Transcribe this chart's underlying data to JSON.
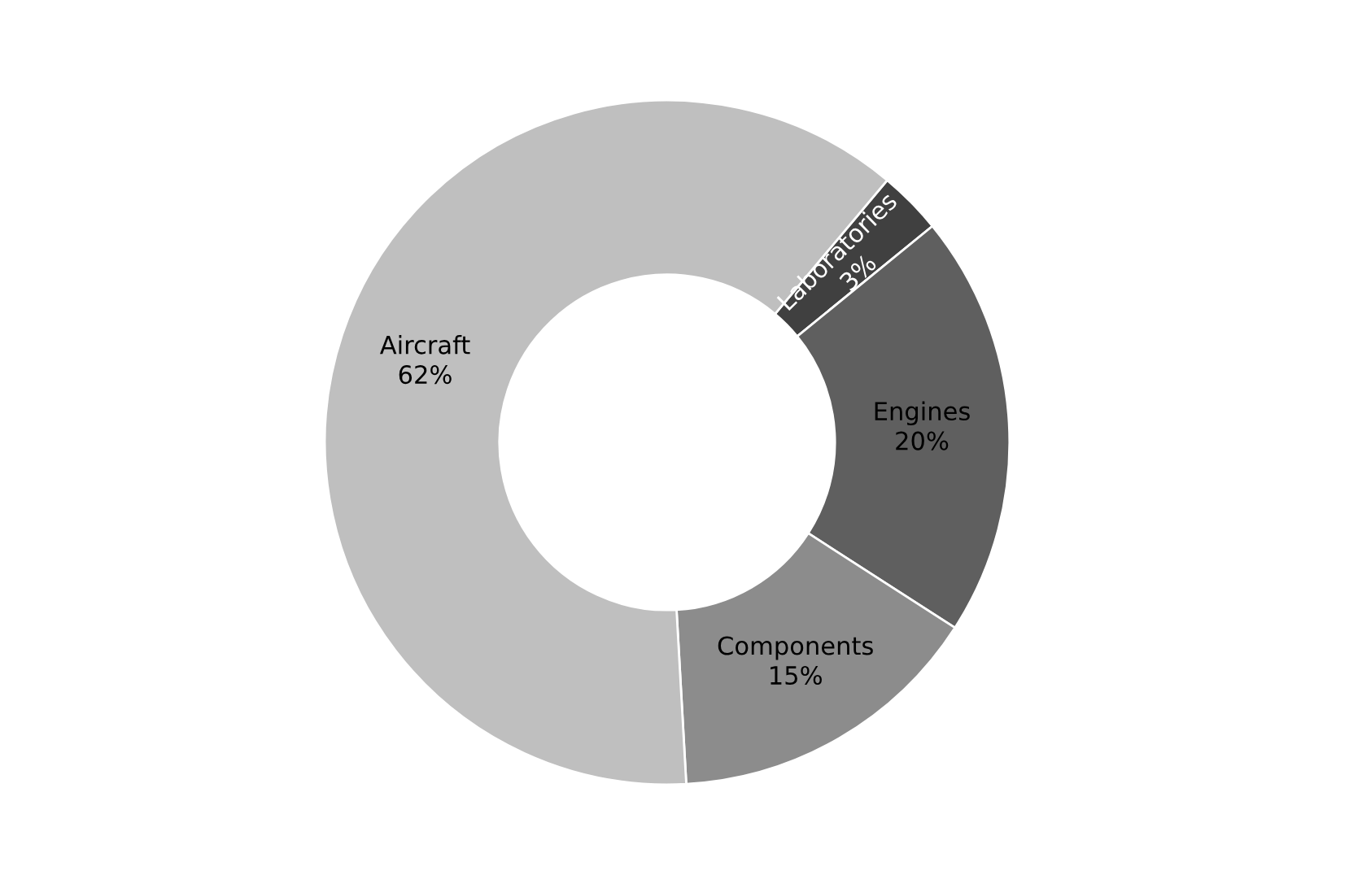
{
  "chart_data": {
    "type": "donut",
    "categories": [
      "Laboratories",
      "Engines",
      "Components",
      "Aircraft"
    ],
    "values": [
      3,
      20,
      15,
      62
    ],
    "value_labels": [
      "3%",
      "20%",
      "15%",
      "62%"
    ],
    "colors": [
      "#404040",
      "#5f5f5f",
      "#8c8c8c",
      "#bfbfbf"
    ]
  }
}
